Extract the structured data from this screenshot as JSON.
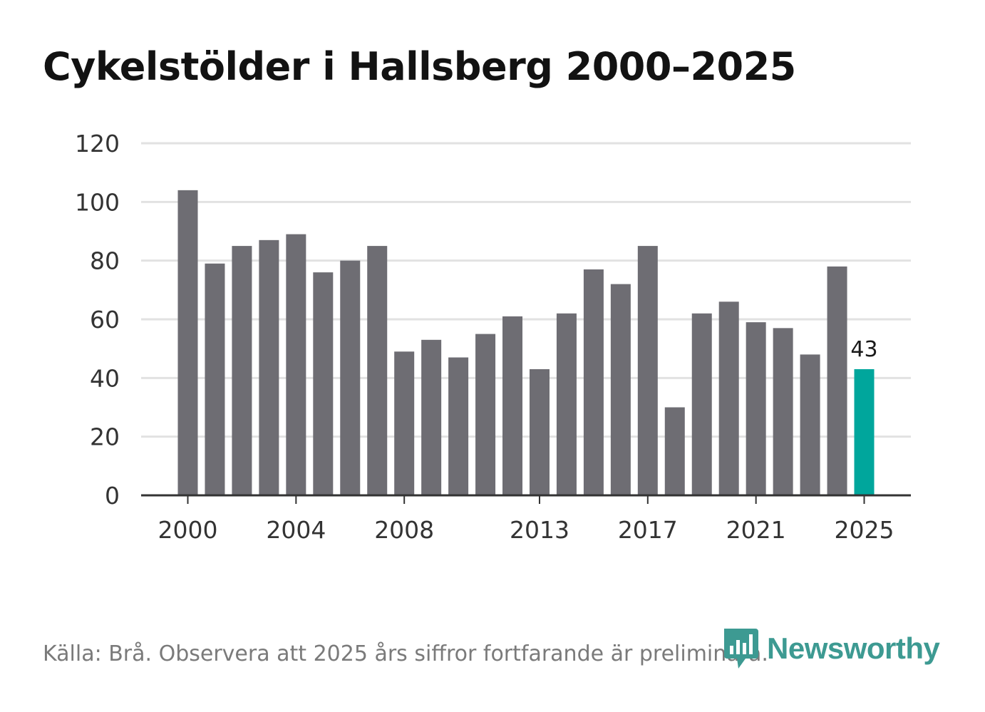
{
  "title": "Cykelstölder i Hallsberg 2000–2025",
  "source": "Källa: Brå. Observera att 2025 års siffror fortfarande är preliminära.",
  "logo": {
    "text": "Newsworthy",
    "icon": "bar-chart-bubble-icon",
    "color": "#3d9a92"
  },
  "colors": {
    "bar": "#6e6d73",
    "highlight": "#00a69c",
    "grid": "#e2e2e2",
    "axis": "#333333"
  },
  "chart_data": {
    "type": "bar",
    "title": "Cykelstölder i Hallsberg 2000–2025",
    "xlabel": "",
    "ylabel": "",
    "ylim": [
      0,
      120
    ],
    "yticks": [
      0,
      20,
      40,
      60,
      80,
      100,
      120
    ],
    "xtick_labels": [
      "2000",
      "2004",
      "2008",
      "2013",
      "2017",
      "2021",
      "2025"
    ],
    "grid": true,
    "categories": [
      "2000",
      "2001",
      "2002",
      "2003",
      "2004",
      "2005",
      "2006",
      "2007",
      "2008",
      "2009",
      "2010",
      "2011",
      "2012",
      "2013",
      "2014",
      "2015",
      "2016",
      "2017",
      "2018",
      "2019",
      "2020",
      "2021",
      "2022",
      "2023",
      "2024",
      "2025"
    ],
    "values": [
      104,
      79,
      85,
      87,
      89,
      76,
      80,
      85,
      49,
      53,
      47,
      55,
      61,
      43,
      62,
      77,
      72,
      85,
      30,
      62,
      66,
      59,
      57,
      48,
      78,
      43
    ],
    "highlight": {
      "category": "2025",
      "label": "43"
    }
  }
}
